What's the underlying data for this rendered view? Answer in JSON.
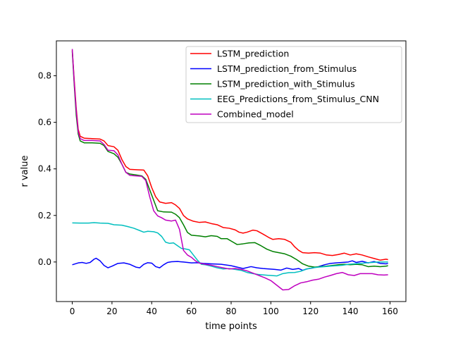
{
  "chart_data": {
    "type": "line",
    "title": "",
    "xlabel": "time points",
    "ylabel": "r value",
    "xlim": [
      -8,
      168
    ],
    "ylim": [
      -0.17,
      0.95
    ],
    "xticks": [
      0,
      20,
      40,
      60,
      80,
      100,
      120,
      140,
      160
    ],
    "yticks": [
      0.0,
      0.2,
      0.4,
      0.6,
      0.8
    ],
    "ytick_labels": [
      "0.0",
      "0.2",
      "0.4",
      "0.6",
      "0.8"
    ],
    "grid": false,
    "legend_position": "upper right",
    "series": [
      {
        "name": "LSTM_prediction",
        "color": "#ff0000",
        "points": [
          [
            0,
            0.91
          ],
          [
            1,
            0.78
          ],
          [
            2,
            0.66
          ],
          [
            3,
            0.57
          ],
          [
            4,
            0.54
          ],
          [
            6,
            0.532
          ],
          [
            10,
            0.53
          ],
          [
            14,
            0.528
          ],
          [
            16,
            0.52
          ],
          [
            18,
            0.5
          ],
          [
            21,
            0.495
          ],
          [
            23,
            0.48
          ],
          [
            25,
            0.44
          ],
          [
            27,
            0.41
          ],
          [
            29,
            0.398
          ],
          [
            33,
            0.396
          ],
          [
            36,
            0.395
          ],
          [
            38,
            0.37
          ],
          [
            40,
            0.32
          ],
          [
            42,
            0.28
          ],
          [
            44,
            0.258
          ],
          [
            47,
            0.252
          ],
          [
            50,
            0.255
          ],
          [
            52,
            0.245
          ],
          [
            54,
            0.23
          ],
          [
            56,
            0.2
          ],
          [
            58,
            0.185
          ],
          [
            61,
            0.175
          ],
          [
            64,
            0.17
          ],
          [
            67,
            0.172
          ],
          [
            70,
            0.165
          ],
          [
            73,
            0.16
          ],
          [
            76,
            0.148
          ],
          [
            79,
            0.145
          ],
          [
            82,
            0.138
          ],
          [
            84,
            0.128
          ],
          [
            86,
            0.124
          ],
          [
            88,
            0.128
          ],
          [
            91,
            0.137
          ],
          [
            93,
            0.134
          ],
          [
            96,
            0.12
          ],
          [
            99,
            0.105
          ],
          [
            101,
            0.097
          ],
          [
            104,
            0.1
          ],
          [
            107,
            0.097
          ],
          [
            110,
            0.085
          ],
          [
            112,
            0.065
          ],
          [
            114,
            0.05
          ],
          [
            116,
            0.04
          ],
          [
            119,
            0.038
          ],
          [
            122,
            0.04
          ],
          [
            125,
            0.038
          ],
          [
            128,
            0.03
          ],
          [
            131,
            0.028
          ],
          [
            134,
            0.032
          ],
          [
            137,
            0.038
          ],
          [
            140,
            0.03
          ],
          [
            143,
            0.035
          ],
          [
            146,
            0.03
          ],
          [
            149,
            0.022
          ],
          [
            152,
            0.015
          ],
          [
            155,
            0.008
          ],
          [
            158,
            0.012
          ],
          [
            159,
            0.01
          ]
        ]
      },
      {
        "name": "LSTM_prediction_from_Stimulus",
        "color": "#0000ff",
        "points": [
          [
            0,
            -0.012
          ],
          [
            3,
            -0.004
          ],
          [
            5,
            -0.002
          ],
          [
            7,
            -0.006
          ],
          [
            9,
            -0.002
          ],
          [
            11,
            0.012
          ],
          [
            12,
            0.016
          ],
          [
            14,
            0.005
          ],
          [
            16,
            -0.015
          ],
          [
            18,
            -0.025
          ],
          [
            20,
            -0.018
          ],
          [
            23,
            -0.006
          ],
          [
            26,
            -0.004
          ],
          [
            29,
            -0.01
          ],
          [
            32,
            -0.022
          ],
          [
            34,
            -0.025
          ],
          [
            36,
            -0.01
          ],
          [
            38,
            -0.003
          ],
          [
            40,
            -0.005
          ],
          [
            42,
            -0.02
          ],
          [
            44,
            -0.025
          ],
          [
            46,
            -0.012
          ],
          [
            48,
            -0.002
          ],
          [
            50,
            0.001
          ],
          [
            53,
            0.002
          ],
          [
            56,
            0.0
          ],
          [
            60,
            -0.004
          ],
          [
            63,
            -0.003
          ],
          [
            66,
            -0.006
          ],
          [
            70,
            -0.008
          ],
          [
            75,
            -0.01
          ],
          [
            80,
            -0.016
          ],
          [
            83,
            -0.022
          ],
          [
            86,
            -0.028
          ],
          [
            90,
            -0.02
          ],
          [
            93,
            -0.025
          ],
          [
            96,
            -0.028
          ],
          [
            99,
            -0.03
          ],
          [
            102,
            -0.032
          ],
          [
            105,
            -0.035
          ],
          [
            108,
            -0.026
          ],
          [
            111,
            -0.032
          ],
          [
            114,
            -0.028
          ],
          [
            116,
            -0.036
          ],
          [
            118,
            -0.03
          ],
          [
            121,
            -0.026
          ],
          [
            124,
            -0.02
          ],
          [
            127,
            -0.012
          ],
          [
            130,
            -0.006
          ],
          [
            133,
            -0.004
          ],
          [
            136,
            -0.002
          ],
          [
            139,
            0.0
          ],
          [
            141,
            0.005
          ],
          [
            143,
            -0.002
          ],
          [
            146,
            0.003
          ],
          [
            149,
            -0.004
          ],
          [
            152,
            0.002
          ],
          [
            155,
            -0.006
          ],
          [
            158,
            -0.008
          ],
          [
            159,
            -0.006
          ]
        ]
      },
      {
        "name": "LSTM_prediction_with_Stimulus",
        "color": "#008000",
        "points": [
          [
            0,
            0.905
          ],
          [
            1,
            0.76
          ],
          [
            2,
            0.63
          ],
          [
            3,
            0.55
          ],
          [
            4,
            0.52
          ],
          [
            6,
            0.512
          ],
          [
            10,
            0.512
          ],
          [
            14,
            0.51
          ],
          [
            16,
            0.5
          ],
          [
            18,
            0.475
          ],
          [
            21,
            0.465
          ],
          [
            23,
            0.45
          ],
          [
            25,
            0.42
          ],
          [
            27,
            0.385
          ],
          [
            29,
            0.378
          ],
          [
            32,
            0.374
          ],
          [
            35,
            0.37
          ],
          [
            37,
            0.355
          ],
          [
            39,
            0.31
          ],
          [
            41,
            0.265
          ],
          [
            43,
            0.22
          ],
          [
            46,
            0.215
          ],
          [
            50,
            0.214
          ],
          [
            52,
            0.205
          ],
          [
            54,
            0.19
          ],
          [
            56,
            0.16
          ],
          [
            58,
            0.127
          ],
          [
            60,
            0.115
          ],
          [
            64,
            0.112
          ],
          [
            67,
            0.108
          ],
          [
            70,
            0.113
          ],
          [
            73,
            0.11
          ],
          [
            75,
            0.1
          ],
          [
            78,
            0.1
          ],
          [
            81,
            0.085
          ],
          [
            83,
            0.075
          ],
          [
            86,
            0.078
          ],
          [
            89,
            0.082
          ],
          [
            92,
            0.083
          ],
          [
            95,
            0.07
          ],
          [
            98,
            0.055
          ],
          [
            101,
            0.045
          ],
          [
            104,
            0.04
          ],
          [
            107,
            0.035
          ],
          [
            110,
            0.025
          ],
          [
            113,
            0.01
          ],
          [
            116,
            -0.008
          ],
          [
            119,
            -0.018
          ],
          [
            122,
            -0.022
          ],
          [
            125,
            -0.02
          ],
          [
            128,
            -0.018
          ],
          [
            131,
            -0.015
          ],
          [
            134,
            -0.012
          ],
          [
            137,
            -0.01
          ],
          [
            140,
            -0.012
          ],
          [
            143,
            -0.01
          ],
          [
            146,
            -0.012
          ],
          [
            149,
            -0.02
          ],
          [
            152,
            -0.018
          ],
          [
            155,
            -0.02
          ],
          [
            158,
            -0.018
          ],
          [
            159,
            -0.016
          ]
        ]
      },
      {
        "name": "EEG_Predictions_from_Stimulus_CNN",
        "color": "#00bfbf",
        "points": [
          [
            0,
            0.168
          ],
          [
            4,
            0.167
          ],
          [
            8,
            0.167
          ],
          [
            11,
            0.169
          ],
          [
            14,
            0.167
          ],
          [
            18,
            0.166
          ],
          [
            21,
            0.16
          ],
          [
            25,
            0.158
          ],
          [
            28,
            0.152
          ],
          [
            31,
            0.145
          ],
          [
            34,
            0.135
          ],
          [
            36,
            0.128
          ],
          [
            38,
            0.132
          ],
          [
            41,
            0.13
          ],
          [
            43,
            0.125
          ],
          [
            45,
            0.11
          ],
          [
            47,
            0.085
          ],
          [
            49,
            0.08
          ],
          [
            51,
            0.082
          ],
          [
            53,
            0.07
          ],
          [
            55,
            0.058
          ],
          [
            57,
            0.056
          ],
          [
            59,
            0.052
          ],
          [
            61,
            0.03
          ],
          [
            63,
            0.008
          ],
          [
            65,
            -0.01
          ],
          [
            67,
            -0.012
          ],
          [
            70,
            -0.018
          ],
          [
            73,
            -0.025
          ],
          [
            76,
            -0.03
          ],
          [
            79,
            -0.028
          ],
          [
            82,
            -0.032
          ],
          [
            85,
            -0.036
          ],
          [
            88,
            -0.045
          ],
          [
            91,
            -0.05
          ],
          [
            94,
            -0.054
          ],
          [
            97,
            -0.056
          ],
          [
            100,
            -0.058
          ],
          [
            103,
            -0.06
          ],
          [
            106,
            -0.05
          ],
          [
            109,
            -0.046
          ],
          [
            112,
            -0.045
          ],
          [
            115,
            -0.04
          ],
          [
            118,
            -0.03
          ],
          [
            121,
            -0.025
          ],
          [
            124,
            -0.022
          ],
          [
            127,
            -0.02
          ],
          [
            130,
            -0.018
          ],
          [
            133,
            -0.016
          ],
          [
            136,
            -0.014
          ],
          [
            139,
            -0.01
          ],
          [
            142,
            -0.008
          ],
          [
            145,
            -0.006
          ],
          [
            148,
            -0.004
          ],
          [
            151,
            -0.002
          ],
          [
            154,
            0.0
          ],
          [
            157,
            0.0
          ],
          [
            159,
            0.0
          ]
        ]
      },
      {
        "name": "Combined_model",
        "color": "#bf00bf",
        "points": [
          [
            0,
            0.915
          ],
          [
            1,
            0.77
          ],
          [
            2,
            0.65
          ],
          [
            3,
            0.56
          ],
          [
            4,
            0.53
          ],
          [
            6,
            0.522
          ],
          [
            10,
            0.522
          ],
          [
            14,
            0.52
          ],
          [
            16,
            0.505
          ],
          [
            18,
            0.48
          ],
          [
            21,
            0.478
          ],
          [
            23,
            0.46
          ],
          [
            25,
            0.42
          ],
          [
            27,
            0.385
          ],
          [
            29,
            0.372
          ],
          [
            32,
            0.37
          ],
          [
            35,
            0.368
          ],
          [
            37,
            0.35
          ],
          [
            39,
            0.28
          ],
          [
            41,
            0.22
          ],
          [
            43,
            0.198
          ],
          [
            45,
            0.19
          ],
          [
            47,
            0.18
          ],
          [
            50,
            0.176
          ],
          [
            52,
            0.18
          ],
          [
            54,
            0.14
          ],
          [
            56,
            0.05
          ],
          [
            58,
            0.03
          ],
          [
            60,
            0.02
          ],
          [
            62,
            0.005
          ],
          [
            64,
            -0.005
          ],
          [
            67,
            -0.01
          ],
          [
            70,
            -0.014
          ],
          [
            73,
            -0.02
          ],
          [
            76,
            -0.025
          ],
          [
            79,
            -0.03
          ],
          [
            82,
            -0.028
          ],
          [
            85,
            -0.032
          ],
          [
            88,
            -0.038
          ],
          [
            91,
            -0.048
          ],
          [
            94,
            -0.058
          ],
          [
            97,
            -0.068
          ],
          [
            100,
            -0.08
          ],
          [
            103,
            -0.1
          ],
          [
            106,
            -0.12
          ],
          [
            109,
            -0.118
          ],
          [
            112,
            -0.102
          ],
          [
            115,
            -0.09
          ],
          [
            118,
            -0.085
          ],
          [
            121,
            -0.078
          ],
          [
            124,
            -0.074
          ],
          [
            127,
            -0.065
          ],
          [
            130,
            -0.058
          ],
          [
            133,
            -0.05
          ],
          [
            136,
            -0.045
          ],
          [
            139,
            -0.055
          ],
          [
            142,
            -0.058
          ],
          [
            145,
            -0.05
          ],
          [
            148,
            -0.05
          ],
          [
            151,
            -0.05
          ],
          [
            154,
            -0.055
          ],
          [
            157,
            -0.056
          ],
          [
            159,
            -0.055
          ]
        ]
      }
    ]
  }
}
